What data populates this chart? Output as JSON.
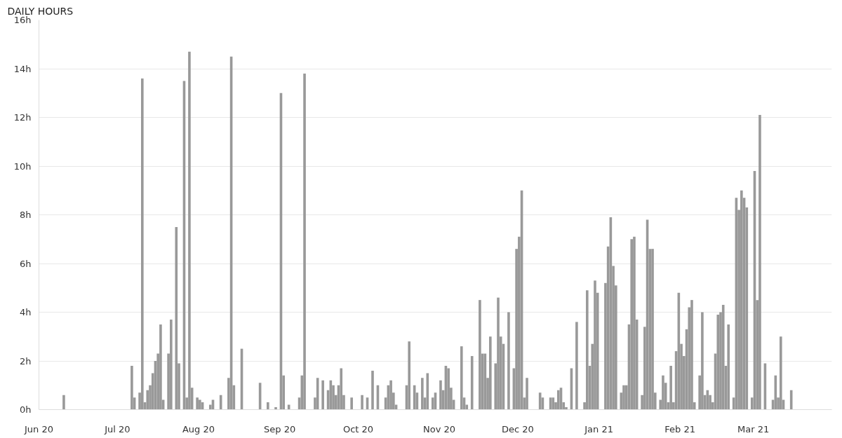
{
  "chart_data": {
    "type": "bar",
    "title": "DAILY HOURS",
    "color": "#999999",
    "grid": "y",
    "xlim": [
      "2020-06-01",
      "2021-03-31"
    ],
    "xticks": [
      {
        "value": "2020-06-01",
        "label": "Jun 20"
      },
      {
        "value": "2020-07-01",
        "label": "Jul 20"
      },
      {
        "value": "2020-08-01",
        "label": "Aug 20"
      },
      {
        "value": "2020-09-01",
        "label": "Sep 20"
      },
      {
        "value": "2020-10-01",
        "label": "Oct 20"
      },
      {
        "value": "2020-11-01",
        "label": "Nov 20"
      },
      {
        "value": "2020-12-01",
        "label": "Dec 20"
      },
      {
        "value": "2021-01-01",
        "label": "Jan 21"
      },
      {
        "value": "2021-02-01",
        "label": "Feb 21"
      },
      {
        "value": "2021-03-01",
        "label": "Mar 21"
      }
    ],
    "ylim": [
      0,
      16
    ],
    "yticks": [
      {
        "value": 0,
        "label": "0h"
      },
      {
        "value": 2,
        "label": "2h"
      },
      {
        "value": 4,
        "label": "4h"
      },
      {
        "value": 6,
        "label": "6h"
      },
      {
        "value": 8,
        "label": "8h"
      },
      {
        "value": 10,
        "label": "10h"
      },
      {
        "value": 12,
        "label": "12h"
      },
      {
        "value": 14,
        "label": "14h"
      },
      {
        "value": 16,
        "label": "16h"
      }
    ],
    "x": [
      "2020-06-10",
      "2020-07-06",
      "2020-07-07",
      "2020-07-09",
      "2020-07-10",
      "2020-07-11",
      "2020-07-12",
      "2020-07-13",
      "2020-07-14",
      "2020-07-15",
      "2020-07-16",
      "2020-07-17",
      "2020-07-18",
      "2020-07-20",
      "2020-07-21",
      "2020-07-23",
      "2020-07-24",
      "2020-07-26",
      "2020-07-27",
      "2020-07-28",
      "2020-07-29",
      "2020-07-31",
      "2020-08-01",
      "2020-08-02",
      "2020-08-05",
      "2020-08-06",
      "2020-08-09",
      "2020-08-12",
      "2020-08-13",
      "2020-08-14",
      "2020-08-17",
      "2020-08-24",
      "2020-08-27",
      "2020-08-30",
      "2020-09-01",
      "2020-09-02",
      "2020-09-04",
      "2020-09-08",
      "2020-09-09",
      "2020-09-10",
      "2020-09-14",
      "2020-09-15",
      "2020-09-17",
      "2020-09-19",
      "2020-09-20",
      "2020-09-21",
      "2020-09-22",
      "2020-09-23",
      "2020-09-24",
      "2020-09-25",
      "2020-09-28",
      "2020-10-02",
      "2020-10-04",
      "2020-10-06",
      "2020-10-08",
      "2020-10-11",
      "2020-10-12",
      "2020-10-13",
      "2020-10-14",
      "2020-10-15",
      "2020-10-19",
      "2020-10-20",
      "2020-10-22",
      "2020-10-23",
      "2020-10-25",
      "2020-10-26",
      "2020-10-27",
      "2020-10-29",
      "2020-10-30",
      "2020-11-01",
      "2020-11-02",
      "2020-11-03",
      "2020-11-04",
      "2020-11-05",
      "2020-11-06",
      "2020-11-09",
      "2020-11-10",
      "2020-11-11",
      "2020-11-13",
      "2020-11-16",
      "2020-11-17",
      "2020-11-18",
      "2020-11-19",
      "2020-11-20",
      "2020-11-22",
      "2020-11-23",
      "2020-11-24",
      "2020-11-25",
      "2020-11-27",
      "2020-11-29",
      "2020-11-30",
      "2020-12-01",
      "2020-12-02",
      "2020-12-03",
      "2020-12-04",
      "2020-12-09",
      "2020-12-10",
      "2020-12-13",
      "2020-12-14",
      "2020-12-15",
      "2020-12-16",
      "2020-12-17",
      "2020-12-18",
      "2020-12-19",
      "2020-12-21",
      "2020-12-23",
      "2020-12-26",
      "2020-12-27",
      "2020-12-28",
      "2020-12-29",
      "2020-12-30",
      "2020-12-31",
      "2021-01-03",
      "2021-01-04",
      "2021-01-05",
      "2021-01-06",
      "2021-01-07",
      "2021-01-09",
      "2021-01-10",
      "2021-01-11",
      "2021-01-12",
      "2021-01-13",
      "2021-01-14",
      "2021-01-15",
      "2021-01-17",
      "2021-01-18",
      "2021-01-19",
      "2021-01-20",
      "2021-01-21",
      "2021-01-22",
      "2021-01-24",
      "2021-01-25",
      "2021-01-26",
      "2021-01-27",
      "2021-01-28",
      "2021-01-29",
      "2021-01-30",
      "2021-01-31",
      "2021-02-01",
      "2021-02-02",
      "2021-02-03",
      "2021-02-04",
      "2021-02-05",
      "2021-02-06",
      "2021-02-08",
      "2021-02-09",
      "2021-02-10",
      "2021-02-11",
      "2021-02-12",
      "2021-02-13",
      "2021-02-14",
      "2021-02-15",
      "2021-02-16",
      "2021-02-17",
      "2021-02-18",
      "2021-02-19",
      "2021-02-21",
      "2021-02-22",
      "2021-02-23",
      "2021-02-24",
      "2021-02-25",
      "2021-02-26",
      "2021-02-28",
      "2021-03-01",
      "2021-03-02",
      "2021-03-03",
      "2021-03-05",
      "2021-03-08",
      "2021-03-09",
      "2021-03-10",
      "2021-03-11",
      "2021-03-12",
      "2021-03-15"
    ],
    "values": [
      0.6,
      1.8,
      0.5,
      0.7,
      13.6,
      0.3,
      0.8,
      1.0,
      1.5,
      2.0,
      2.3,
      3.5,
      0.4,
      2.3,
      3.7,
      7.5,
      1.9,
      13.5,
      0.5,
      14.7,
      0.9,
      0.5,
      0.4,
      0.3,
      0.2,
      0.4,
      0.6,
      1.3,
      14.5,
      1.0,
      2.5,
      1.1,
      0.3,
      0.1,
      13.0,
      1.4,
      0.2,
      0.5,
      1.4,
      13.8,
      0.5,
      1.3,
      1.2,
      0.8,
      1.2,
      1.0,
      0.6,
      1.0,
      1.7,
      0.6,
      0.5,
      0.6,
      0.5,
      1.6,
      1.0,
      0.5,
      1.0,
      1.2,
      0.7,
      0.2,
      1.0,
      2.8,
      1.0,
      0.7,
      1.3,
      0.5,
      1.5,
      0.5,
      0.7,
      1.2,
      0.8,
      1.8,
      1.7,
      0.9,
      0.4,
      2.6,
      0.5,
      0.2,
      2.2,
      4.5,
      2.3,
      2.3,
      1.3,
      3.0,
      1.9,
      4.6,
      3.0,
      2.7,
      4.0,
      1.7,
      6.6,
      7.1,
      9.0,
      0.5,
      1.3,
      0.7,
      0.5,
      0.5,
      0.5,
      0.3,
      0.8,
      0.9,
      0.3,
      0.1,
      1.7,
      3.6,
      0.3,
      4.9,
      1.8,
      2.7,
      5.3,
      4.8,
      5.2,
      6.7,
      7.9,
      5.9,
      5.1,
      0.7,
      1.0,
      1.0,
      3.5,
      7.0,
      7.1,
      3.7,
      0.6,
      3.4,
      7.8,
      6.6,
      6.6,
      0.7,
      0.4,
      1.4,
      1.1,
      0.3,
      1.8,
      0.3,
      2.4,
      4.8,
      2.7,
      2.2,
      3.3,
      4.2,
      4.5,
      0.3,
      1.4,
      4.0,
      0.6,
      0.8,
      0.6,
      0.3,
      2.3,
      3.9,
      4.0,
      4.3,
      1.8,
      3.5,
      0.5,
      8.7,
      8.2,
      9.0,
      8.7,
      8.3,
      0.5,
      9.8,
      4.5,
      12.1,
      1.9,
      0.4,
      1.4,
      0.5,
      3.0,
      0.4,
      0.8
    ]
  }
}
